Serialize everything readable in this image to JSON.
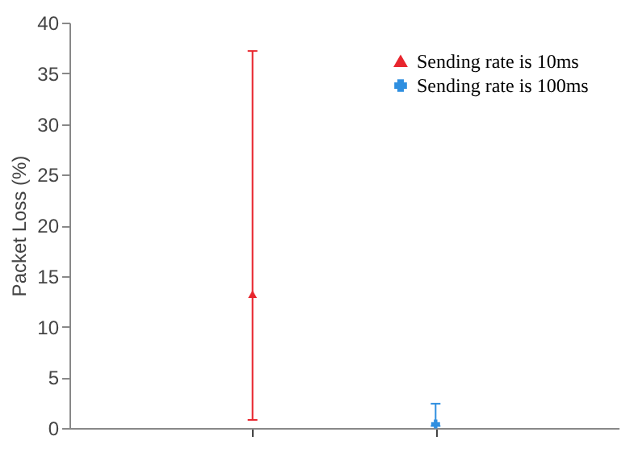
{
  "chart_data": {
    "type": "scatter",
    "ylabel": "Packet Loss (%)",
    "categories": [
      null,
      null
    ],
    "series": [
      {
        "name": "Sending rate is 10ms",
        "color": "#e8262e",
        "marker": "triangle",
        "values": [
          13.2,
          null
        ],
        "errors": [
          [
            0.8,
            37.2
          ],
          null
        ]
      },
      {
        "name": "Sending rate is 100ms",
        "color": "#2f8fe0",
        "marker": "cross",
        "values": [
          null,
          0.4
        ],
        "errors": [
          null,
          [
            0.2,
            2.4
          ]
        ]
      }
    ],
    "ylim": [
      0,
      40
    ],
    "yticks": [
      0,
      5,
      10,
      15,
      20,
      25,
      30,
      35,
      40
    ],
    "tick_labels": "y",
    "legend": "top right",
    "grid": false
  }
}
